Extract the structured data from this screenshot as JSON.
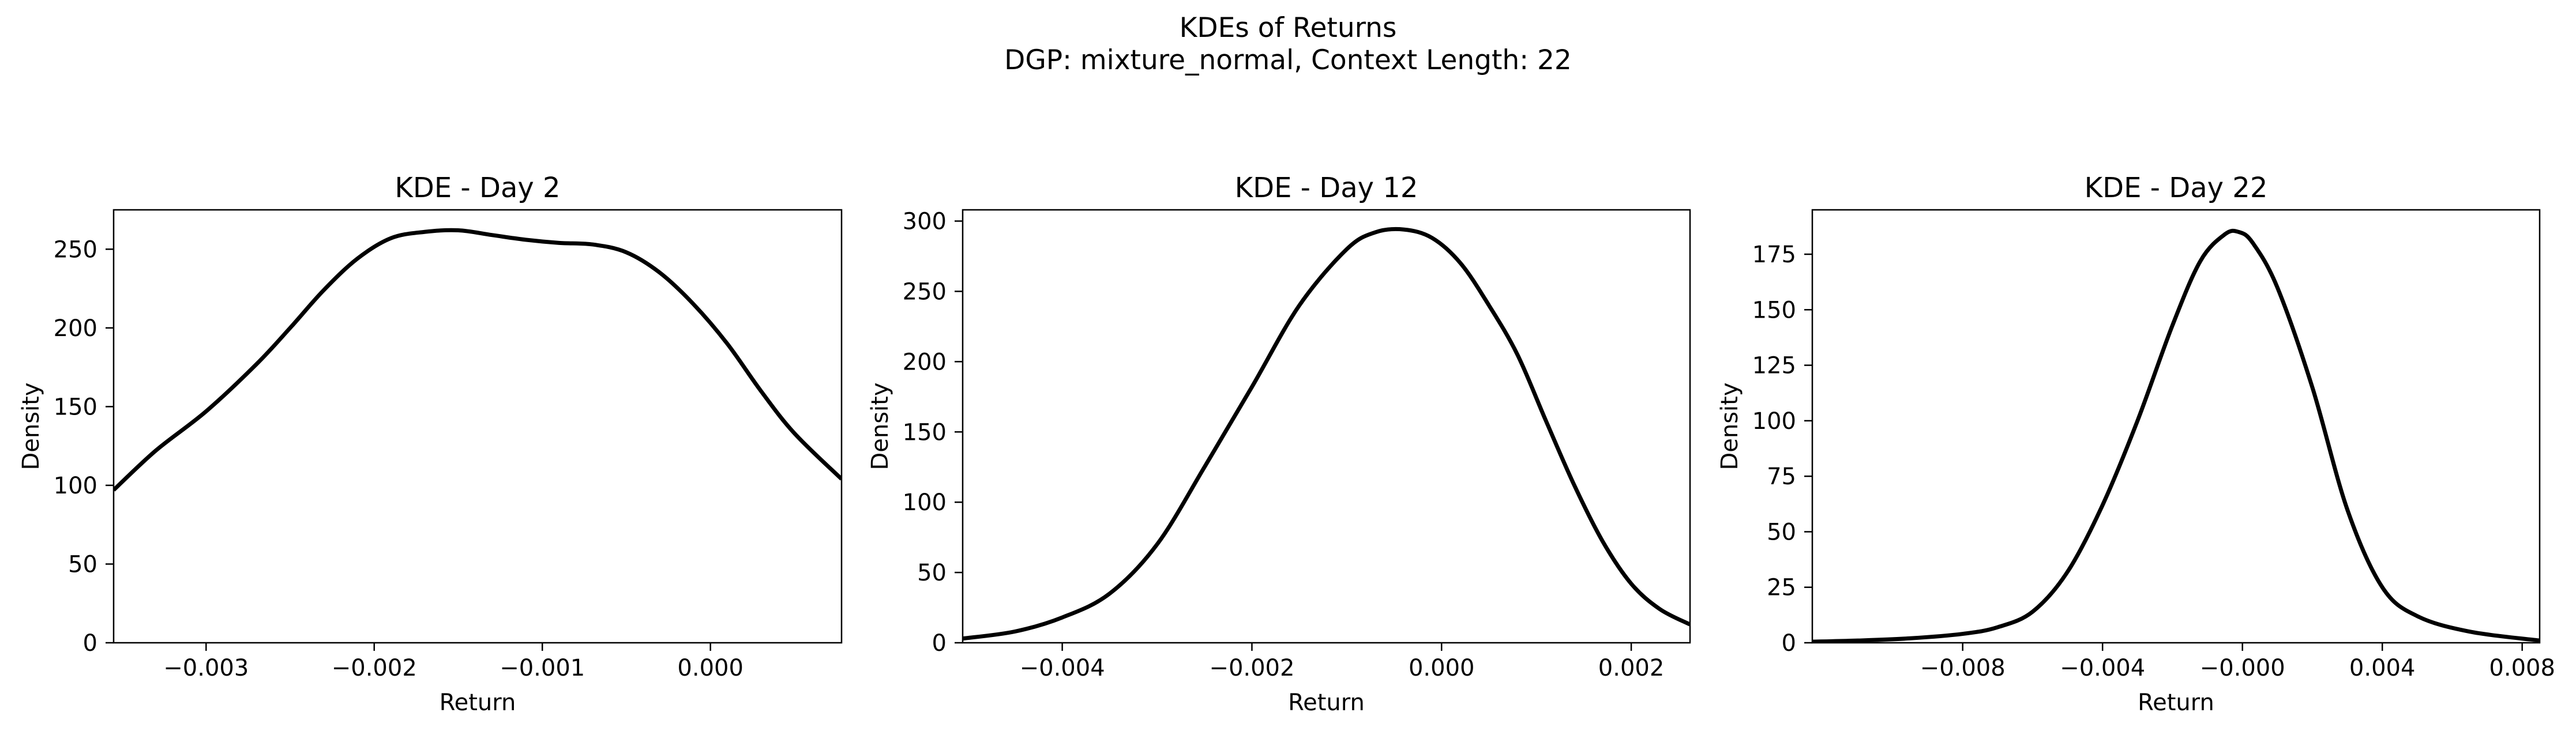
{
  "figure": {
    "title_line1": "KDEs of Returns",
    "title_line2": "DGP: mixture_normal, Context Length: 22",
    "line_color": "#000000",
    "background": "#ffffff"
  },
  "chart_data": [
    {
      "type": "line",
      "title": "KDE - Day 2",
      "xlabel": "Return",
      "ylabel": "Density",
      "xlim": [
        -0.00355,
        0.00078
      ],
      "ylim": [
        0,
        275
      ],
      "xticks": [
        -0.003,
        -0.002,
        -0.001,
        0.0
      ],
      "xtick_labels": [
        "−0.003",
        "−0.002",
        "−0.001",
        "0.000"
      ],
      "yticks": [
        0,
        50,
        100,
        150,
        200,
        250
      ],
      "ytick_labels": [
        "0",
        "50",
        "100",
        "150",
        "200",
        "250"
      ],
      "grid": false,
      "series": [
        {
          "x": [
            -0.00355,
            -0.0033,
            -0.003,
            -0.0027,
            -0.0025,
            -0.0023,
            -0.0021,
            -0.0019,
            -0.0017,
            -0.0015,
            -0.0013,
            -0.0011,
            -0.0009,
            -0.0007,
            -0.0005,
            -0.0003,
            -0.0001,
            0.0001,
            0.0003,
            0.0005,
            0.00078
          ],
          "y": [
            97,
            122,
            147,
            177,
            200,
            224,
            244,
            257,
            261,
            262,
            259,
            256,
            254,
            253,
            248,
            235,
            215,
            190,
            160,
            133,
            104
          ]
        }
      ]
    },
    {
      "type": "line",
      "title": "KDE - Day 12",
      "xlabel": "Return",
      "ylabel": "Density",
      "xlim": [
        -0.00505,
        0.00262
      ],
      "ylim": [
        0,
        308
      ],
      "xticks": [
        -0.004,
        -0.002,
        0.0,
        0.002
      ],
      "xtick_labels": [
        "−0.004",
        "−0.002",
        "0.000",
        "0.002"
      ],
      "yticks": [
        0,
        50,
        100,
        150,
        200,
        250,
        300
      ],
      "ytick_labels": [
        "0",
        "50",
        "100",
        "150",
        "200",
        "250",
        "300"
      ],
      "grid": false,
      "series": [
        {
          "x": [
            -0.00505,
            -0.0045,
            -0.004,
            -0.0035,
            -0.003,
            -0.0025,
            -0.002,
            -0.0015,
            -0.001,
            -0.0007,
            -0.0004,
            -0.0001,
            0.0002,
            0.0005,
            0.0008,
            0.0011,
            0.0014,
            0.0017,
            0.002,
            0.0023,
            0.00262
          ],
          "y": [
            3,
            8,
            18,
            35,
            70,
            125,
            182,
            240,
            280,
            292,
            294,
            288,
            270,
            240,
            205,
            158,
            112,
            72,
            42,
            24,
            13
          ]
        }
      ]
    },
    {
      "type": "line",
      "title": "KDE - Day 22",
      "xlabel": "Return",
      "ylabel": "Density",
      "xlim": [
        -0.0123,
        0.0085
      ],
      "ylim": [
        0,
        195
      ],
      "xticks": [
        -0.008,
        -0.004,
        0.0,
        0.004,
        0.008
      ],
      "xtick_labels": [
        "−0.008",
        "−0.004",
        "−0.000",
        "0.004",
        "0.008"
      ],
      "yticks": [
        0,
        25,
        50,
        75,
        100,
        125,
        150,
        175
      ],
      "ytick_labels": [
        "0",
        "25",
        "50",
        "75",
        "100",
        "125",
        "150",
        "175"
      ],
      "grid": false,
      "series": [
        {
          "x": [
            -0.0123,
            -0.011,
            -0.0095,
            -0.008,
            -0.007,
            -0.006,
            -0.005,
            -0.004,
            -0.003,
            -0.002,
            -0.0012,
            -0.0005,
            -0.0001,
            0.0003,
            0.001,
            0.002,
            0.003,
            0.004,
            0.005,
            0.0065,
            0.0085
          ],
          "y": [
            0.5,
            1,
            2,
            4,
            7,
            14,
            32,
            62,
            100,
            143,
            172,
            184,
            185,
            180,
            160,
            115,
            60,
            25,
            12,
            5,
            1
          ]
        }
      ]
    }
  ]
}
